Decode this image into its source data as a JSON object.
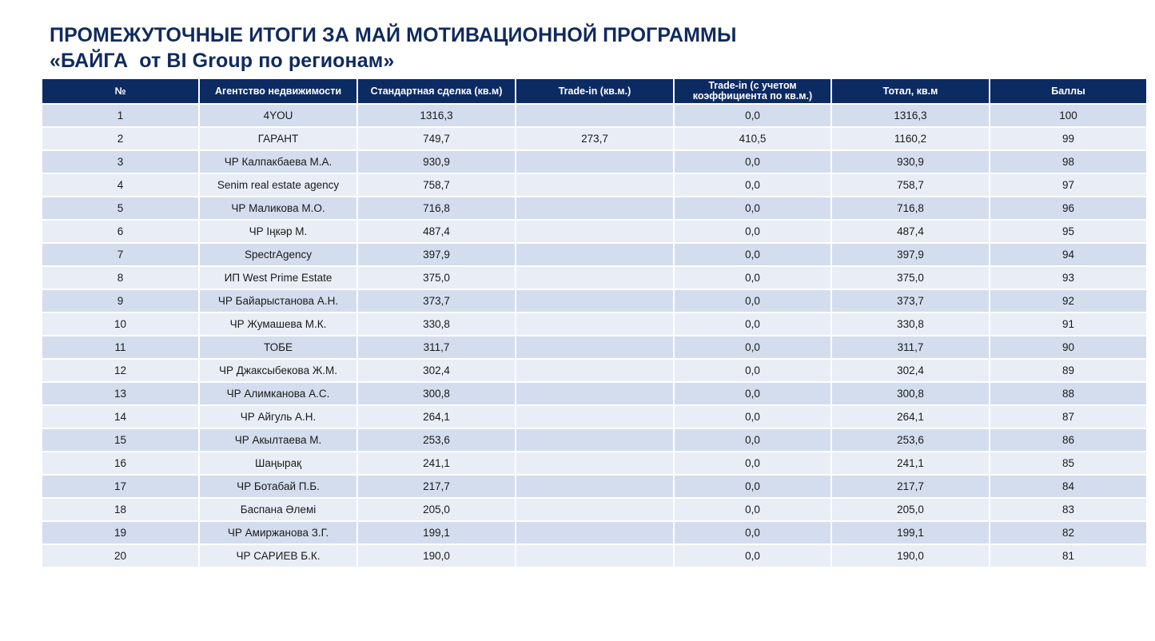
{
  "title": {
    "line1": "ПРОМЕЖУТОЧНЫЕ ИТОГИ ЗА МАЙ МОТИВАЦИОННОЙ ПРОГРАММЫ",
    "line2": "«БАЙГА  от BI Group по регионам»"
  },
  "table": {
    "headers": [
      "№",
      "Агентство недвижимости",
      "Стандартная сделка (кв.м)",
      "Trade-in (кв.м.)",
      "Trade-in (с учетом коэффициента по кв.м.)",
      "Тотал, кв.м",
      "Баллы"
    ],
    "rows": [
      [
        "1",
        "4YOU",
        "1316,3",
        "",
        "0,0",
        "1316,3",
        "100"
      ],
      [
        "2",
        "ГАРАНТ",
        "749,7",
        "273,7",
        "410,5",
        "1160,2",
        "99"
      ],
      [
        "3",
        "ЧР Калпакбаева М.А.",
        "930,9",
        "",
        "0,0",
        "930,9",
        "98"
      ],
      [
        "4",
        "Senim real estate agency",
        "758,7",
        "",
        "0,0",
        "758,7",
        "97"
      ],
      [
        "5",
        "ЧР Маликова М.О.",
        "716,8",
        "",
        "0,0",
        "716,8",
        "96"
      ],
      [
        "6",
        "ЧР Iңкәр М.",
        "487,4",
        "",
        "0,0",
        "487,4",
        "95"
      ],
      [
        "7",
        "SpectrAgency",
        "397,9",
        "",
        "0,0",
        "397,9",
        "94"
      ],
      [
        "8",
        "ИП West Prime Estate",
        "375,0",
        "",
        "0,0",
        "375,0",
        "93"
      ],
      [
        "9",
        "ЧР Байарыстанова А.Н.",
        "373,7",
        "",
        "0,0",
        "373,7",
        "92"
      ],
      [
        "10",
        "ЧР Жумашева М.К.",
        "330,8",
        "",
        "0,0",
        "330,8",
        "91"
      ],
      [
        "11",
        "ТОБЕ",
        "311,7",
        "",
        "0,0",
        "311,7",
        "90"
      ],
      [
        "12",
        "ЧР Джаксыбекова Ж.М.",
        "302,4",
        "",
        "0,0",
        "302,4",
        "89"
      ],
      [
        "13",
        "ЧР Алимканова А.С.",
        "300,8",
        "",
        "0,0",
        "300,8",
        "88"
      ],
      [
        "14",
        "ЧР Айгуль А.Н.",
        "264,1",
        "",
        "0,0",
        "264,1",
        "87"
      ],
      [
        "15",
        "ЧР Акылтаева М.",
        "253,6",
        "",
        "0,0",
        "253,6",
        "86"
      ],
      [
        "16",
        "Шаңырақ",
        "241,1",
        "",
        "0,0",
        "241,1",
        "85"
      ],
      [
        "17",
        "ЧР Ботабай П.Б.",
        "217,7",
        "",
        "0,0",
        "217,7",
        "84"
      ],
      [
        "18",
        "Баспана Әлемi",
        "205,0",
        "",
        "0,0",
        "205,0",
        "83"
      ],
      [
        "19",
        "ЧР Амиржанова З.Г.",
        "199,1",
        "",
        "0,0",
        "199,1",
        "82"
      ],
      [
        "20",
        "ЧР САРИЕВ Б.К.",
        "190,0",
        "",
        "0,0",
        "190,0",
        "81"
      ]
    ]
  },
  "colors": {
    "title": "#0f2a5e",
    "header_bg": "#0d2b63",
    "row_odd": "#d4ddee",
    "row_even": "#e9edf6"
  }
}
